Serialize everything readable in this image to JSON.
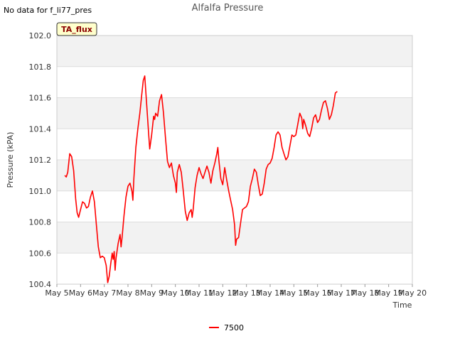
{
  "header": {
    "no_data_text": "No data for f_li77_pres"
  },
  "badge": {
    "label": "TA_flux",
    "fill_color": "#ffffcc"
  },
  "chart_data": {
    "type": "line",
    "title": "Alfalfa Pressure",
    "xlabel": "Time",
    "ylabel": "Pressure (kPA)",
    "ylim": [
      100.4,
      102.0
    ],
    "xlim": [
      "May 5",
      "May 20"
    ],
    "x_ticks": [
      "May 5",
      "May 6",
      "May 7",
      "May 8",
      "May 9",
      "May 10",
      "May 11",
      "May 12",
      "May 13",
      "May 14",
      "May 15",
      "May 16",
      "May 17",
      "May 18",
      "May 19",
      "May 20"
    ],
    "y_ticks": [
      "100.4",
      "100.6",
      "100.8",
      "101.0",
      "101.2",
      "101.4",
      "101.6",
      "101.8",
      "102.0"
    ],
    "grid": true,
    "legend_position": "bottom-center",
    "series": [
      {
        "name": "7500",
        "color": "#ff0000",
        "points": [
          [
            "May 5 08:00",
            101.1
          ],
          [
            "May 5 09:30",
            101.09
          ],
          [
            "May 5 11:00",
            101.12
          ],
          [
            "May 5 13:00",
            101.24
          ],
          [
            "May 5 15:00",
            101.22
          ],
          [
            "May 5 17:00",
            101.13
          ],
          [
            "May 5 19:00",
            100.95
          ],
          [
            "May 5 20:30",
            100.86
          ],
          [
            "May 5 22:00",
            100.83
          ],
          [
            "May 6 00:00",
            100.88
          ],
          [
            "May 6 02:00",
            100.93
          ],
          [
            "May 6 04:00",
            100.92
          ],
          [
            "May 6 06:00",
            100.89
          ],
          [
            "May 6 08:00",
            100.9
          ],
          [
            "May 6 10:00",
            100.96
          ],
          [
            "May 6 12:00",
            101.0
          ],
          [
            "May 6 14:00",
            100.93
          ],
          [
            "May 6 16:00",
            100.78
          ],
          [
            "May 6 18:00",
            100.64
          ],
          [
            "May 6 20:00",
            100.57
          ],
          [
            "May 6 22:00",
            100.58
          ],
          [
            "May 7 00:00",
            100.57
          ],
          [
            "May 7 02:00",
            100.52
          ],
          [
            "May 7 03:30",
            100.41
          ],
          [
            "May 7 05:00",
            100.45
          ],
          [
            "May 7 06:30",
            100.53
          ],
          [
            "May 7 08:00",
            100.6
          ],
          [
            "May 7 09:00",
            100.56
          ],
          [
            "May 7 10:00",
            100.61
          ],
          [
            "May 7 11:00",
            100.49
          ],
          [
            "May 7 12:00",
            100.57
          ],
          [
            "May 7 14:00",
            100.66
          ],
          [
            "May 7 16:00",
            100.72
          ],
          [
            "May 7 17:00",
            100.64
          ],
          [
            "May 7 18:00",
            100.7
          ],
          [
            "May 7 20:00",
            100.84
          ],
          [
            "May 7 22:00",
            100.96
          ],
          [
            "May 8 00:00",
            101.03
          ],
          [
            "May 8 02:00",
            101.05
          ],
          [
            "May 8 04:00",
            101.0
          ],
          [
            "May 8 05:00",
            100.94
          ],
          [
            "May 8 06:00",
            101.08
          ],
          [
            "May 8 08:00",
            101.28
          ],
          [
            "May 8 10:00",
            101.4
          ],
          [
            "May 8 12:00",
            101.5
          ],
          [
            "May 8 14:00",
            101.62
          ],
          [
            "May 8 15:30",
            101.71
          ],
          [
            "May 8 17:00",
            101.74
          ],
          [
            "May 8 19:00",
            101.55
          ],
          [
            "May 8 21:00",
            101.36
          ],
          [
            "May 8 22:00",
            101.27
          ],
          [
            "May 9 00:00",
            101.36
          ],
          [
            "May 9 02:00",
            101.48
          ],
          [
            "May 9 03:00",
            101.46
          ],
          [
            "May 9 04:00",
            101.5
          ],
          [
            "May 9 06:00",
            101.48
          ],
          [
            "May 9 08:00",
            101.58
          ],
          [
            "May 9 10:00",
            101.62
          ],
          [
            "May 9 12:00",
            101.5
          ],
          [
            "May 9 14:00",
            101.34
          ],
          [
            "May 9 16:00",
            101.19
          ],
          [
            "May 9 18:00",
            101.15
          ],
          [
            "May 9 20:00",
            101.18
          ],
          [
            "May 9 22:00",
            101.1
          ],
          [
            "May 10 00:00",
            101.05
          ],
          [
            "May 10 01:00",
            100.99
          ],
          [
            "May 10 02:00",
            101.12
          ],
          [
            "May 10 04:00",
            101.17
          ],
          [
            "May 10 06:00",
            101.12
          ],
          [
            "May 10 08:00",
            101.0
          ],
          [
            "May 10 10:00",
            100.87
          ],
          [
            "May 10 12:00",
            100.81
          ],
          [
            "May 10 14:00",
            100.86
          ],
          [
            "May 10 16:00",
            100.88
          ],
          [
            "May 10 17:00",
            100.83
          ],
          [
            "May 10 18:00",
            100.88
          ],
          [
            "May 10 20:00",
            101.02
          ],
          [
            "May 10 22:00",
            101.1
          ],
          [
            "May 11 00:00",
            101.15
          ],
          [
            "May 11 02:00",
            101.11
          ],
          [
            "May 11 04:00",
            101.08
          ],
          [
            "May 11 06:00",
            101.12
          ],
          [
            "May 11 08:00",
            101.16
          ],
          [
            "May 11 10:00",
            101.12
          ],
          [
            "May 11 12:00",
            101.05
          ],
          [
            "May 11 14:00",
            101.13
          ],
          [
            "May 11 16:00",
            101.18
          ],
          [
            "May 11 18:00",
            101.24
          ],
          [
            "May 11 19:00",
            101.28
          ],
          [
            "May 11 20:00",
            101.2
          ],
          [
            "May 11 22:00",
            101.08
          ],
          [
            "May 12 00:00",
            101.04
          ],
          [
            "May 12 02:00",
            101.15
          ],
          [
            "May 12 04:00",
            101.07
          ],
          [
            "May 12 06:00",
            101.0
          ],
          [
            "May 12 08:00",
            100.94
          ],
          [
            "May 12 10:00",
            100.88
          ],
          [
            "May 12 12:00",
            100.78
          ],
          [
            "May 12 13:00",
            100.65
          ],
          [
            "May 12 14:00",
            100.69
          ],
          [
            "May 12 16:00",
            100.7
          ],
          [
            "May 12 18:00",
            100.79
          ],
          [
            "May 12 20:00",
            100.88
          ],
          [
            "May 12 22:00",
            100.89
          ],
          [
            "May 13 00:00",
            100.9
          ],
          [
            "May 13 02:00",
            100.93
          ],
          [
            "May 13 04:00",
            101.03
          ],
          [
            "May 13 06:00",
            101.08
          ],
          [
            "May 13 08:00",
            101.14
          ],
          [
            "May 13 10:00",
            101.12
          ],
          [
            "May 13 12:00",
            101.04
          ],
          [
            "May 13 14:00",
            100.97
          ],
          [
            "May 13 16:00",
            100.98
          ],
          [
            "May 13 18:00",
            101.05
          ],
          [
            "May 13 20:00",
            101.14
          ],
          [
            "May 13 22:00",
            101.17
          ],
          [
            "May 14 00:00",
            101.18
          ],
          [
            "May 14 02:00",
            101.21
          ],
          [
            "May 14 04:00",
            101.28
          ],
          [
            "May 14 06:00",
            101.36
          ],
          [
            "May 14 08:00",
            101.38
          ],
          [
            "May 14 10:00",
            101.36
          ],
          [
            "May 14 12:00",
            101.28
          ],
          [
            "May 14 14:00",
            101.24
          ],
          [
            "May 14 16:00",
            101.2
          ],
          [
            "May 14 18:00",
            101.22
          ],
          [
            "May 14 20:00",
            101.29
          ],
          [
            "May 14 22:00",
            101.36
          ],
          [
            "May 15 00:00",
            101.35
          ],
          [
            "May 15 02:00",
            101.36
          ],
          [
            "May 15 04:00",
            101.43
          ],
          [
            "May 15 06:00",
            101.5
          ],
          [
            "May 15 08:00",
            101.47
          ],
          [
            "May 15 09:00",
            101.4
          ],
          [
            "May 15 10:00",
            101.46
          ],
          [
            "May 15 12:00",
            101.42
          ],
          [
            "May 15 14:00",
            101.37
          ],
          [
            "May 15 16:00",
            101.35
          ],
          [
            "May 15 18:00",
            101.4
          ],
          [
            "May 15 20:00",
            101.47
          ],
          [
            "May 15 22:00",
            101.49
          ],
          [
            "May 16 00:00",
            101.44
          ],
          [
            "May 16 02:00",
            101.46
          ],
          [
            "May 16 04:00",
            101.52
          ],
          [
            "May 16 06:00",
            101.57
          ],
          [
            "May 16 08:00",
            101.58
          ],
          [
            "May 16 10:00",
            101.53
          ],
          [
            "May 16 12:00",
            101.46
          ],
          [
            "May 16 14:00",
            101.49
          ],
          [
            "May 16 16:00",
            101.55
          ],
          [
            "May 16 18:00",
            101.63
          ],
          [
            "May 16 20:00",
            101.64
          ]
        ]
      }
    ]
  }
}
